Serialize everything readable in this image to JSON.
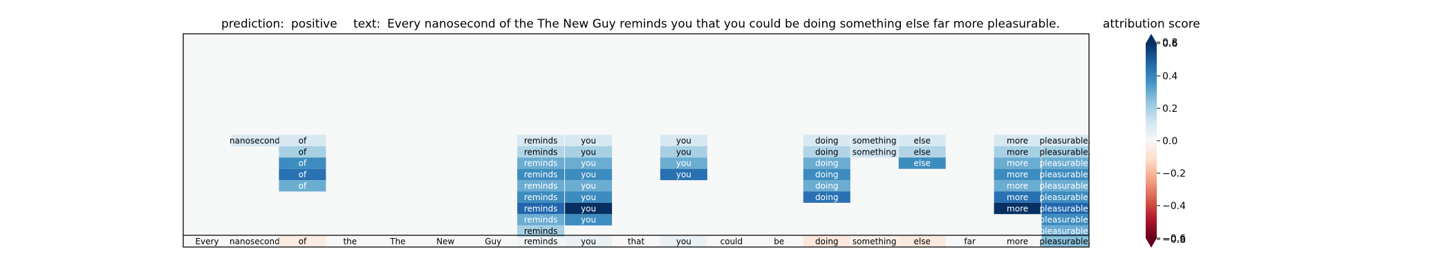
{
  "header": {
    "prediction_label": "prediction:",
    "prediction_value": "positive",
    "text_label": "text:",
    "text_value": "Every nanosecond of the The New Guy reminds you that you could be doing something else far more pleasurable."
  },
  "chart_data": {
    "type": "heatmap",
    "colorbar": {
      "title": "attribution score",
      "range": [
        -0.6,
        0.6
      ],
      "ticks": [
        0.8,
        0.6,
        0.4,
        0.2,
        0.0,
        -0.2,
        -0.4,
        -0.6,
        -0.8
      ],
      "tick_labels": [
        "0.8",
        "0.6",
        "0.4",
        "0.2",
        "0.0",
        "−0.2",
        "−0.4",
        "−0.6",
        "−0.8"
      ],
      "extend": "both",
      "colormap": "RdBu"
    },
    "tokens": [
      "Every",
      "nanosecond",
      "of",
      "the",
      "The",
      "New",
      "Guy",
      "reminds",
      "you",
      "that",
      "you",
      "could",
      "be",
      "doing",
      "something",
      "else",
      "far",
      "more",
      "pleasurable."
    ],
    "base_row_scores": [
      0.0,
      0.0,
      -0.05,
      0.0,
      0.0,
      0.0,
      0.0,
      0.02,
      0.04,
      0.0,
      0.04,
      0.0,
      0.0,
      -0.07,
      -0.03,
      -0.06,
      0.0,
      0.0,
      0.25
    ],
    "stacks": [
      {
        "token": "nanosecond",
        "col": 1,
        "scores": [
          0.1
        ]
      },
      {
        "token": "of",
        "col": 2,
        "scores": [
          0.1,
          0.2,
          0.38,
          0.45,
          0.3
        ]
      },
      {
        "token": "reminds",
        "col": 7,
        "scores": [
          0.1,
          0.18,
          0.3,
          0.38,
          0.3,
          0.38,
          0.48,
          0.3,
          0.2
        ]
      },
      {
        "token": "you",
        "col": 8,
        "scores": [
          0.1,
          0.2,
          0.3,
          0.38,
          0.3,
          0.38,
          0.75,
          0.38
        ]
      },
      {
        "token": "you",
        "col": 10,
        "scores": [
          0.1,
          0.2,
          0.3,
          0.45
        ]
      },
      {
        "token": "doing",
        "col": 13,
        "scores": [
          0.1,
          0.18,
          0.3,
          0.38,
          0.3,
          0.45
        ]
      },
      {
        "token": "something",
        "col": 14,
        "scores": [
          0.1,
          0.12
        ]
      },
      {
        "token": "else",
        "col": 15,
        "scores": [
          0.1,
          0.18,
          0.38
        ]
      },
      {
        "token": "more",
        "col": 17,
        "scores": [
          0.1,
          0.2,
          0.3,
          0.38,
          0.3,
          0.45,
          0.62
        ]
      },
      {
        "token": "pleasurable.",
        "col": 18,
        "scores": [
          0.1,
          0.2,
          0.3,
          0.38,
          0.3,
          0.38,
          0.48,
          0.38,
          0.3
        ]
      }
    ]
  }
}
